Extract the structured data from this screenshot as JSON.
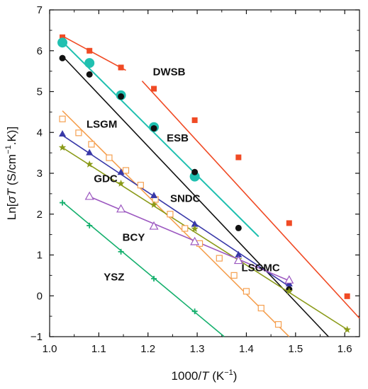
{
  "chart_data": {
    "type": "scatter",
    "title": "",
    "xlabel_parts": [
      "1000/",
      "T",
      " (K",
      "−1",
      ")"
    ],
    "ylabel_parts": [
      "Ln[",
      "σT",
      " (S/cm",
      "−1",
      ".K)]"
    ],
    "xlim": [
      1.0,
      1.63
    ],
    "ylim": [
      -1,
      7
    ],
    "xticks": [
      "1.0",
      "1.1",
      "1.2",
      "1.3",
      "1.4",
      "1.5",
      "1.6"
    ],
    "yticks": [
      "−1",
      "0",
      "1",
      "2",
      "3",
      "4",
      "5",
      "6",
      "7"
    ],
    "grid": false,
    "legend": "none",
    "series": [
      {
        "name": "DWSB",
        "color": "#f04a24",
        "marker": "square-filled",
        "x": [
          1.026,
          1.081,
          1.145,
          1.212,
          1.295,
          1.384,
          1.487,
          1.605
        ],
        "y": [
          6.33,
          6.0,
          5.59,
          5.07,
          4.3,
          3.39,
          1.78,
          -0.01
        ],
        "fit": [
          [
            [
              1.026,
              6.36
            ],
            [
              1.155,
              5.52
            ]
          ],
          [
            [
              1.188,
              5.26
            ],
            [
              1.63,
              -0.55
            ]
          ]
        ],
        "label": {
          "text": "DWSB",
          "x": 1.21,
          "y": 5.4
        }
      },
      {
        "name": "ESB",
        "color": "#20c0b0",
        "marker": "circle-large",
        "x": [
          1.026,
          1.081,
          1.145,
          1.212,
          1.295
        ],
        "y": [
          6.2,
          5.7,
          4.91,
          4.13,
          2.92
        ],
        "fit": [
          [
            [
              1.026,
              6.22
            ],
            [
              1.425,
              1.45
            ]
          ]
        ],
        "label": {
          "text": "ESB",
          "x": 1.238,
          "y": 3.78
        }
      },
      {
        "name": "LSGMC",
        "color": "#111111",
        "marker": "circle-filled",
        "x": [
          1.026,
          1.081,
          1.145,
          1.212,
          1.295,
          1.384,
          1.487
        ],
        "y": [
          5.82,
          5.42,
          4.88,
          4.1,
          3.03,
          1.66,
          0.16
        ],
        "fit": [
          [
            [
              1.026,
              5.87
            ],
            [
              1.567,
              -1.0
            ]
          ]
        ],
        "label": {
          "text": "LSGMC",
          "x": 1.39,
          "y": 0.6
        }
      },
      {
        "name": "LSGM",
        "color": "#f5a050",
        "marker": "square-open",
        "x": [
          1.026,
          1.059,
          1.085,
          1.121,
          1.155,
          1.185,
          1.215,
          1.245,
          1.275,
          1.305,
          1.345,
          1.375,
          1.4,
          1.43,
          1.465
        ],
        "y": [
          4.33,
          3.99,
          3.71,
          3.38,
          3.07,
          2.71,
          2.36,
          2.0,
          1.65,
          1.28,
          0.92,
          0.5,
          0.11,
          -0.3,
          -0.7
        ],
        "fit": [
          [
            [
              1.026,
              4.53
            ],
            [
              1.487,
              -1.0
            ]
          ]
        ],
        "label": {
          "text": "LSGM",
          "x": 1.075,
          "y": 4.12
        }
      },
      {
        "name": "SNDC",
        "color": "#3838a8",
        "marker": "triangle-filled",
        "x": [
          1.026,
          1.081,
          1.145,
          1.212,
          1.295,
          1.384,
          1.487
        ],
        "y": [
          3.97,
          3.51,
          3.03,
          2.46,
          1.76,
          1.01,
          0.3
        ],
        "fit": [
          [
            [
              1.026,
              3.93
            ],
            [
              1.487,
              0.23
            ]
          ]
        ],
        "label": {
          "text": "SNDC",
          "x": 1.245,
          "y": 2.3
        }
      },
      {
        "name": "GDC",
        "color": "#8a9a18",
        "marker": "star",
        "x": [
          1.026,
          1.081,
          1.145,
          1.212,
          1.295,
          1.384,
          1.487,
          1.605
        ],
        "y": [
          3.63,
          3.22,
          2.75,
          2.23,
          1.64,
          0.89,
          0.11,
          -0.83
        ],
        "fit": [
          [
            [
              1.026,
              3.63
            ],
            [
              1.607,
              -0.84
            ]
          ]
        ],
        "label": {
          "text": "GDC",
          "x": 1.09,
          "y": 2.78
        }
      },
      {
        "name": "BCY",
        "color": "#9c58c0",
        "marker": "triangle-open",
        "x": [
          1.081,
          1.145,
          1.212,
          1.295,
          1.384,
          1.487
        ],
        "y": [
          2.43,
          2.12,
          1.7,
          1.32,
          0.86,
          0.38
        ],
        "fit": [
          [
            [
              1.081,
              2.43
            ],
            [
              1.487,
              0.37
            ]
          ]
        ],
        "label": {
          "text": "BCY",
          "x": 1.148,
          "y": 1.35
        }
      },
      {
        "name": "YSZ",
        "color": "#16b06e",
        "marker": "plus",
        "x": [
          1.026,
          1.081,
          1.145,
          1.212,
          1.295
        ],
        "y": [
          2.28,
          1.72,
          1.08,
          0.42,
          -0.38
        ],
        "fit": [
          [
            [
              1.026,
              2.3
            ],
            [
              1.355,
              -1.0
            ]
          ]
        ],
        "label": {
          "text": "YSZ",
          "x": 1.11,
          "y": 0.38
        }
      }
    ]
  }
}
